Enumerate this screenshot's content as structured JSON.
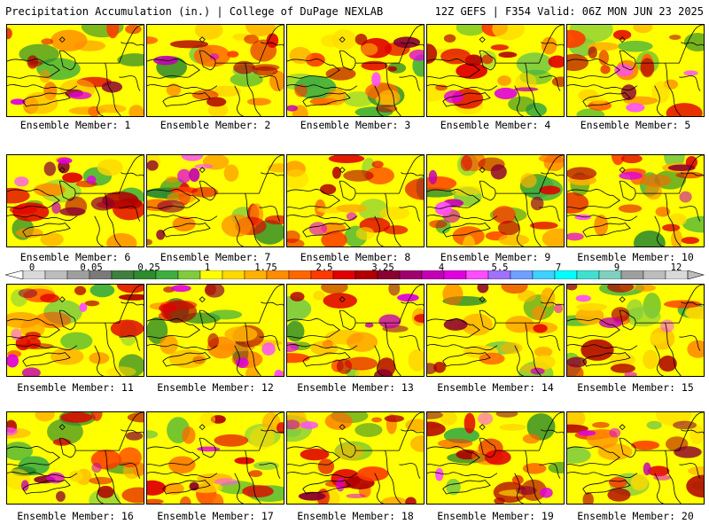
{
  "header": {
    "left_title": "Precipitation Accumulation (in.) | College of DuPage NEXLAB",
    "right_title": "12Z GEFS | F354 Valid: 06Z MON JUN 23 2025"
  },
  "colorbar": {
    "tick_labels": [
      "0",
      "0.05",
      "0.25",
      "1",
      "1.75",
      "2.5",
      "3.25",
      "4",
      "5.5",
      "7",
      "9",
      "12"
    ],
    "colors": [
      "#d9d9d9",
      "#bdbdbd",
      "#9e9e9e",
      "#7a7a7a",
      "#3f7f3f",
      "#2e8b2e",
      "#3fae3f",
      "#7fcc3f",
      "#ffff00",
      "#ffd800",
      "#ffb000",
      "#ff8c00",
      "#ff6600",
      "#ff3a00",
      "#e00000",
      "#b00000",
      "#8b0030",
      "#a0006e",
      "#c400b4",
      "#e000e0",
      "#ff4cff",
      "#a070ff",
      "#6fa0ff",
      "#3fd0ff",
      "#00ffff",
      "#40e0d0",
      "#7fd0c0",
      "#9e9e9e",
      "#bdbdbd",
      "#d9d9d9"
    ]
  },
  "panels": [
    {
      "caption": "Ensemble Member: 1"
    },
    {
      "caption": "Ensemble Member: 2"
    },
    {
      "caption": "Ensemble Member: 3"
    },
    {
      "caption": "Ensemble Member: 4"
    },
    {
      "caption": "Ensemble Member: 5"
    },
    {
      "caption": "Ensemble Member: 6"
    },
    {
      "caption": "Ensemble Member: 7"
    },
    {
      "caption": "Ensemble Member: 8"
    },
    {
      "caption": "Ensemble Member: 9"
    },
    {
      "caption": "Ensemble Member: 10"
    },
    {
      "caption": "Ensemble Member: 11"
    },
    {
      "caption": "Ensemble Member: 12"
    },
    {
      "caption": "Ensemble Member: 13"
    },
    {
      "caption": "Ensemble Member: 14"
    },
    {
      "caption": "Ensemble Member: 15"
    },
    {
      "caption": "Ensemble Member: 16"
    },
    {
      "caption": "Ensemble Member: 17"
    },
    {
      "caption": "Ensemble Member: 18"
    },
    {
      "caption": "Ensemble Member: 19"
    },
    {
      "caption": "Ensemble Member: 20"
    }
  ]
}
